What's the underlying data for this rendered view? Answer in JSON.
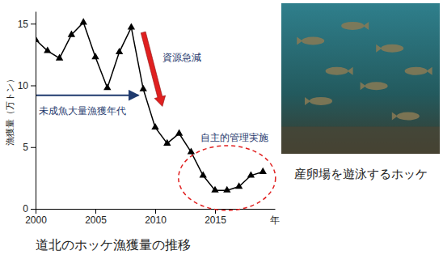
{
  "chart_data": {
    "type": "line",
    "title": "道北のホッケ漁獲量の推移",
    "y_label": "漁獲量（万トン）",
    "x_label": "年",
    "x": [
      2000,
      2001,
      2002,
      2003,
      2004,
      2005,
      2006,
      2007,
      2008,
      2009,
      2010,
      2011,
      2012,
      2013,
      2014,
      2015,
      2016,
      2017,
      2018,
      2019
    ],
    "values": [
      13.7,
      12.8,
      12.2,
      14.1,
      15.1,
      12.3,
      9.8,
      12.7,
      14.7,
      9.7,
      6.6,
      5.3,
      6.1,
      4.6,
      2.7,
      1.5,
      1.5,
      1.8,
      2.7,
      3.0
    ],
    "color": "#000000",
    "marker": "triangle",
    "line_style": "solid",
    "xlim": [
      2000,
      2020
    ],
    "xticks": [
      2000,
      2005,
      2010,
      2015
    ],
    "ylim": [
      0,
      16
    ],
    "yticks": [
      0,
      5,
      10,
      15
    ],
    "grid": false,
    "annotations": [
      "資源急減",
      "未成魚大量漁獲年代",
      "自主的管理実施"
    ],
    "photo_caption": "産卵場を遊泳するホッケ"
  }
}
